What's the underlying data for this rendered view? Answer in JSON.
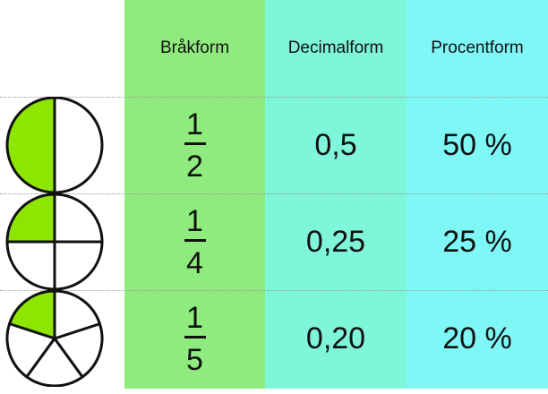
{
  "header": {
    "fraction_label": "Bråkform",
    "decimal_label": "Decimalform",
    "percent_label": "Procentform"
  },
  "rows": [
    {
      "numerator": "1",
      "denominator": "2",
      "decimal": "0,5",
      "percent": "50 %",
      "slices": 2,
      "shaded": 1
    },
    {
      "numerator": "1",
      "denominator": "4",
      "decimal": "0,25",
      "percent": "25 %",
      "slices": 4,
      "shaded": 1
    },
    {
      "numerator": "1",
      "denominator": "5",
      "decimal": "0,20",
      "percent": "20 %",
      "slices": 5,
      "shaded": 1
    }
  ],
  "colors": {
    "fraction_column": "#8feb7d",
    "decimal_column": "#7ff5d9",
    "percent_column": "#7ff7f7",
    "shaded_slice": "#8ee600",
    "empty_slice": "#ffffff"
  }
}
